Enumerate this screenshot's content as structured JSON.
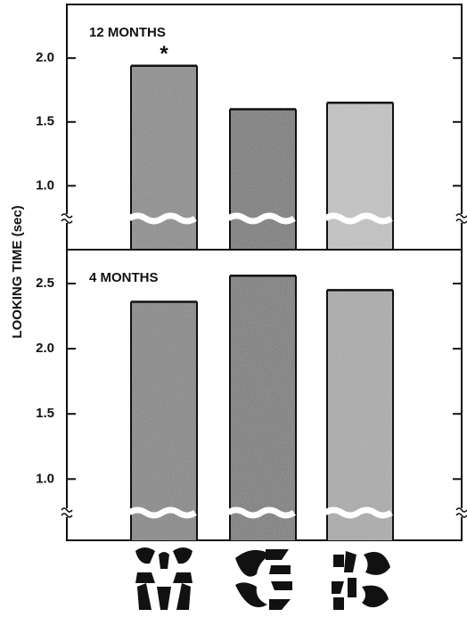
{
  "chart_data": [
    {
      "type": "bar",
      "title": "12 MONTHS",
      "ylabel": "LOOKING TIME (sec)",
      "annotation": "*",
      "categories": [
        null,
        null,
        null
      ],
      "values": [
        1.94,
        1.6,
        1.65
      ],
      "colors": [
        "#8c8c8c",
        "#7a7a7a",
        "#c4c4c4"
      ],
      "ylim": [
        0.5,
        2.42
      ],
      "yticks": [
        {
          "value": 1,
          "label": "1.0"
        },
        1.5,
        {
          "value": 2,
          "label": "2.0"
        }
      ]
    },
    {
      "type": "bar",
      "title": "4 MONTHS",
      "categories": [
        null,
        null,
        null
      ],
      "values": [
        2.36,
        2.56,
        2.45
      ],
      "colors": [
        "#868686",
        "#7c7c7c",
        "#ababab"
      ],
      "ylim": [
        0.53,
        2.76
      ],
      "yticks": [
        {
          "value": 1,
          "label": "1.0"
        },
        1.5,
        {
          "value": 2,
          "label": "2.0"
        },
        2.5
      ]
    }
  ]
}
